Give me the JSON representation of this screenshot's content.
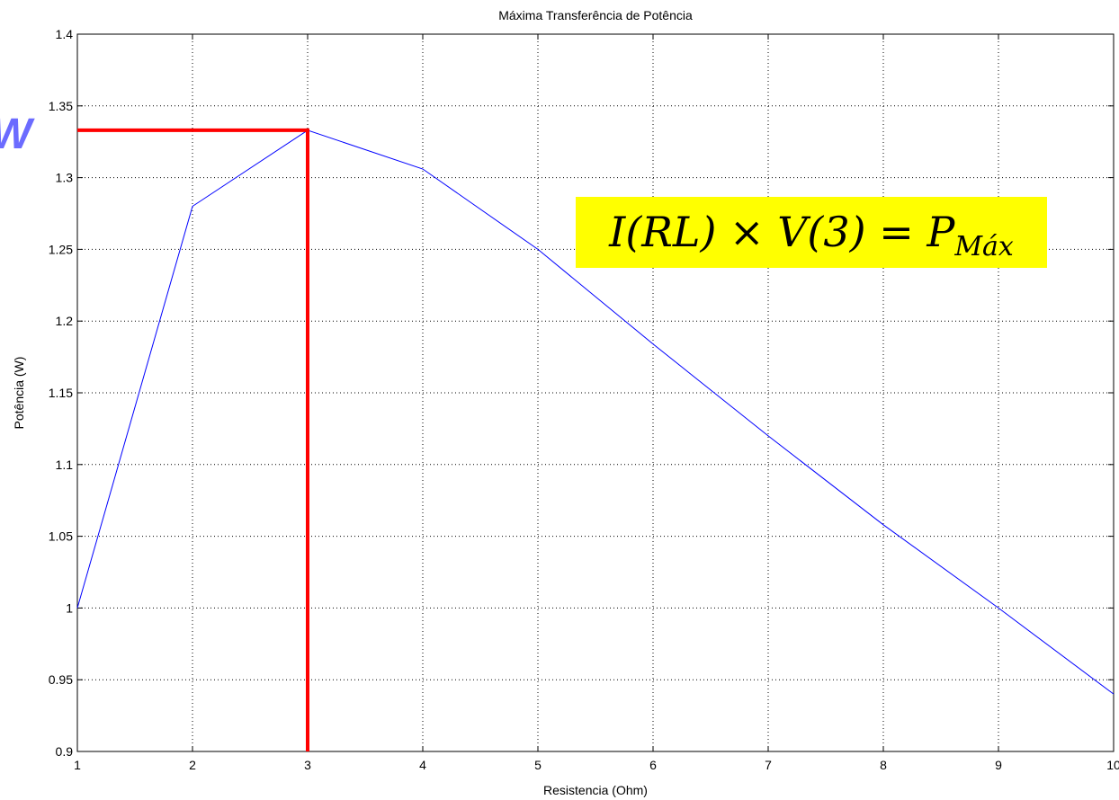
{
  "chart_data": {
    "type": "line",
    "title": "Máxima Transferência de Potência",
    "xlabel": "Resistencia (Ohm)",
    "ylabel": "Potência (W)",
    "xlim": [
      1,
      10
    ],
    "ylim": [
      0.9,
      1.4
    ],
    "grid": true,
    "x_ticks": [
      "1",
      "2",
      "3",
      "4",
      "5",
      "6",
      "7",
      "8",
      "9",
      "10"
    ],
    "y_ticks": [
      "0.9",
      "0.95",
      "1",
      "1.05",
      "1.1",
      "1.15",
      "1.2",
      "1.25",
      "1.3",
      "1.35",
      "1.4"
    ],
    "series": [
      {
        "color": "#0000ff",
        "x": [
          1,
          2,
          3,
          4,
          5,
          6,
          7,
          8,
          9,
          10
        ],
        "y": [
          1.0,
          1.28,
          1.333,
          1.306,
          1.25,
          1.184,
          1.12,
          1.058,
          1.0,
          0.94
        ]
      }
    ],
    "highlight": {
      "color": "#ff0000",
      "x": 3,
      "y": 1.333
    },
    "annotation": {
      "formula": "I(RL) × V(3) = P",
      "formula_sub": "Máx",
      "background": "#ffff00"
    },
    "clipped_text": "W",
    "clipped_text_color": "#6b6bff"
  }
}
